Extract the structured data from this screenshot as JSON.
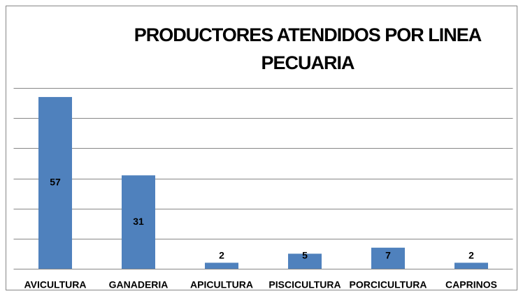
{
  "chart_data": {
    "type": "bar",
    "title": "PRODUCTORES ATENDIDOS POR LINEA PECUARIA",
    "categories": [
      "AVICULTURA",
      "GANADERIA",
      "APICULTURA",
      "PISCICULTURA",
      "PORCICULTURA",
      "CAPRINOS"
    ],
    "values": [
      57,
      31,
      2,
      5,
      7,
      2
    ],
    "color": "#4f81bd",
    "ylim": [
      0,
      60
    ],
    "yticks": [
      0,
      10,
      20,
      30,
      40,
      50,
      60
    ],
    "grid": true
  }
}
